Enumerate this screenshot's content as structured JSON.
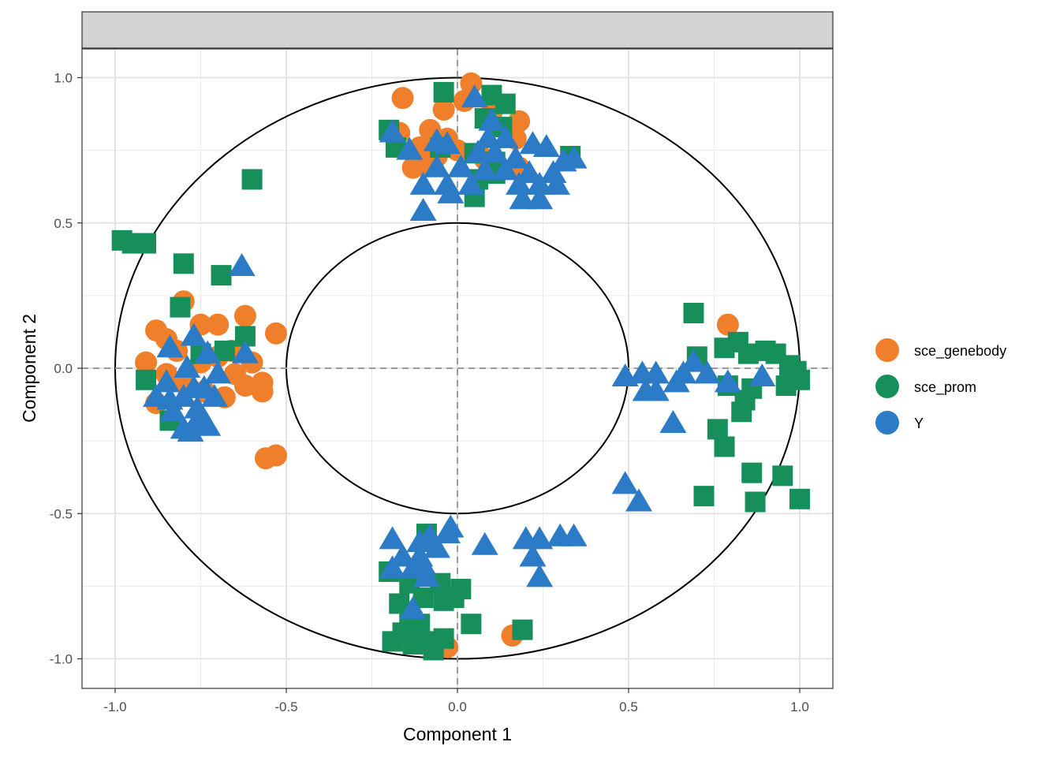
{
  "chart_data": {
    "type": "scatter",
    "title": "",
    "xlabel": "Component  1",
    "ylabel": "Component  2",
    "xlim": [
      -1.1,
      1.1
    ],
    "ylim": [
      -1.1,
      1.1
    ],
    "x_ticks": [
      "-1.0",
      "-0.5",
      "0.0",
      "0.5",
      "1.0"
    ],
    "y_ticks": [
      "-1.0",
      "-0.5",
      "0.0",
      "0.5",
      "1.0"
    ],
    "grid": true,
    "reference_circles": [
      1.0,
      0.5
    ],
    "reference_lines": {
      "x": 0,
      "y": 0,
      "style": "dashed"
    },
    "legend": {
      "placement": "right",
      "entries": [
        "sce_genebody",
        "sce_prom",
        "Y"
      ]
    },
    "series": [
      {
        "name": "sce_genebody",
        "color": "#F07F2B",
        "marker": "circle",
        "points": [
          [
            -0.88,
            0.13
          ],
          [
            -0.85,
            0.1
          ],
          [
            -0.8,
            0.23
          ],
          [
            -0.75,
            0.15
          ],
          [
            -0.7,
            0.15
          ],
          [
            -0.62,
            0.18
          ],
          [
            -0.53,
            0.12
          ],
          [
            -0.91,
            0.02
          ],
          [
            -0.85,
            -0.02
          ],
          [
            -0.82,
            0.06
          ],
          [
            -0.75,
            0.02
          ],
          [
            -0.7,
            0.04
          ],
          [
            -0.66,
            0.06
          ],
          [
            -0.6,
            0.02
          ],
          [
            -0.57,
            -0.05
          ],
          [
            -0.62,
            -0.06
          ],
          [
            -0.68,
            -0.1
          ],
          [
            -0.74,
            -0.08
          ],
          [
            -0.8,
            -0.05
          ],
          [
            -0.88,
            -0.12
          ],
          [
            -0.57,
            -0.08
          ],
          [
            -0.56,
            -0.31
          ],
          [
            -0.53,
            -0.3
          ],
          [
            -0.65,
            -0.02
          ],
          [
            0.04,
            0.98
          ],
          [
            -0.16,
            0.93
          ],
          [
            -0.04,
            0.89
          ],
          [
            0.02,
            0.92
          ],
          [
            0.1,
            0.88
          ],
          [
            0.18,
            0.85
          ],
          [
            -0.08,
            0.82
          ],
          [
            -0.17,
            0.81
          ],
          [
            -0.03,
            0.79
          ],
          [
            0.17,
            0.79
          ],
          [
            -0.11,
            0.76
          ],
          [
            -0.1,
            0.7
          ],
          [
            -0.06,
            0.73
          ],
          [
            0.0,
            0.75
          ],
          [
            0.08,
            0.72
          ],
          [
            -0.13,
            0.69
          ],
          [
            0.18,
            0.69
          ],
          [
            0.79,
            0.15
          ],
          [
            -0.03,
            -0.96
          ],
          [
            0.16,
            -0.92
          ]
        ]
      },
      {
        "name": "sce_prom",
        "color": "#178F5B",
        "marker": "square",
        "points": [
          [
            -0.98,
            0.44
          ],
          [
            -0.95,
            0.43
          ],
          [
            -0.91,
            0.43
          ],
          [
            -0.6,
            0.65
          ],
          [
            -0.8,
            0.36
          ],
          [
            -0.69,
            0.32
          ],
          [
            -0.81,
            0.21
          ],
          [
            -0.62,
            0.11
          ],
          [
            -0.68,
            0.06
          ],
          [
            -0.75,
            0.05
          ],
          [
            -0.91,
            -0.04
          ],
          [
            -0.84,
            -0.18
          ],
          [
            -0.04,
            0.95
          ],
          [
            0.1,
            0.94
          ],
          [
            0.14,
            0.91
          ],
          [
            0.08,
            0.86
          ],
          [
            0.13,
            0.83
          ],
          [
            -0.2,
            0.82
          ],
          [
            -0.18,
            0.76
          ],
          [
            -0.05,
            0.76
          ],
          [
            0.05,
            0.74
          ],
          [
            0.11,
            0.71
          ],
          [
            0.06,
            0.65
          ],
          [
            0.33,
            0.73
          ],
          [
            0.11,
            0.67
          ],
          [
            0.05,
            0.59
          ],
          [
            0.69,
            0.19
          ],
          [
            0.7,
            0.04
          ],
          [
            0.78,
            0.07
          ],
          [
            0.82,
            0.09
          ],
          [
            0.85,
            0.05
          ],
          [
            0.9,
            0.06
          ],
          [
            0.93,
            0.05
          ],
          [
            0.97,
            0.01
          ],
          [
            0.99,
            -0.01
          ],
          [
            1.0,
            -0.04
          ],
          [
            0.96,
            -0.06
          ],
          [
            0.86,
            -0.07
          ],
          [
            0.79,
            -0.06
          ],
          [
            0.84,
            -0.11
          ],
          [
            0.83,
            -0.15
          ],
          [
            0.76,
            -0.21
          ],
          [
            0.78,
            -0.27
          ],
          [
            0.86,
            -0.36
          ],
          [
            0.95,
            -0.37
          ],
          [
            0.72,
            -0.44
          ],
          [
            0.87,
            -0.46
          ],
          [
            1.0,
            -0.45
          ],
          [
            -0.09,
            -0.57
          ],
          [
            -0.2,
            -0.7
          ],
          [
            -0.14,
            -0.74
          ],
          [
            -0.05,
            -0.74
          ],
          [
            -0.1,
            -0.79
          ],
          [
            -0.17,
            -0.81
          ],
          [
            -0.04,
            -0.8
          ],
          [
            -0.01,
            -0.79
          ],
          [
            0.01,
            -0.76
          ],
          [
            -0.14,
            -0.85
          ],
          [
            -0.11,
            -0.88
          ],
          [
            -0.16,
            -0.91
          ],
          [
            -0.19,
            -0.94
          ],
          [
            -0.13,
            -0.95
          ],
          [
            -0.08,
            -0.94
          ],
          [
            -0.04,
            -0.93
          ],
          [
            -0.07,
            -0.97
          ],
          [
            0.04,
            -0.88
          ],
          [
            0.19,
            -0.9
          ]
        ]
      },
      {
        "name": "Y",
        "color": "#2C7BC6",
        "marker": "triangle",
        "points": [
          [
            -0.63,
            0.35
          ],
          [
            -0.77,
            0.11
          ],
          [
            -0.84,
            0.07
          ],
          [
            -0.73,
            0.05
          ],
          [
            -0.62,
            0.05
          ],
          [
            -0.79,
            0.0
          ],
          [
            -0.85,
            -0.05
          ],
          [
            -0.7,
            -0.02
          ],
          [
            -0.77,
            -0.07
          ],
          [
            -0.88,
            -0.1
          ],
          [
            -0.84,
            -0.11
          ],
          [
            -0.8,
            -0.1
          ],
          [
            -0.71,
            -0.1
          ],
          [
            -0.76,
            -0.14
          ],
          [
            -0.83,
            -0.15
          ],
          [
            -0.76,
            -0.18
          ],
          [
            -0.8,
            -0.21
          ],
          [
            -0.78,
            -0.22
          ],
          [
            -0.73,
            -0.2
          ],
          [
            -0.74,
            -0.07
          ],
          [
            0.05,
            0.93
          ],
          [
            0.1,
            0.85
          ],
          [
            -0.19,
            0.81
          ],
          [
            0.09,
            0.79
          ],
          [
            0.14,
            0.79
          ],
          [
            -0.06,
            0.78
          ],
          [
            -0.14,
            0.75
          ],
          [
            -0.03,
            0.77
          ],
          [
            0.22,
            0.77
          ],
          [
            0.26,
            0.76
          ],
          [
            0.06,
            0.74
          ],
          [
            0.11,
            0.74
          ],
          [
            0.17,
            0.72
          ],
          [
            0.31,
            0.71
          ],
          [
            0.34,
            0.72
          ],
          [
            -0.06,
            0.69
          ],
          [
            0.01,
            0.69
          ],
          [
            0.08,
            0.68
          ],
          [
            0.14,
            0.68
          ],
          [
            0.21,
            0.67
          ],
          [
            0.28,
            0.67
          ],
          [
            -0.1,
            0.63
          ],
          [
            -0.03,
            0.63
          ],
          [
            0.04,
            0.63
          ],
          [
            0.18,
            0.63
          ],
          [
            0.24,
            0.63
          ],
          [
            0.29,
            0.63
          ],
          [
            -0.02,
            0.6
          ],
          [
            0.19,
            0.58
          ],
          [
            0.24,
            0.58
          ],
          [
            -0.1,
            0.54
          ],
          [
            0.49,
            -0.03
          ],
          [
            0.54,
            -0.02
          ],
          [
            0.58,
            -0.02
          ],
          [
            0.66,
            -0.02
          ],
          [
            0.69,
            0.02
          ],
          [
            0.73,
            -0.02
          ],
          [
            0.79,
            -0.05
          ],
          [
            0.89,
            -0.03
          ],
          [
            0.64,
            -0.05
          ],
          [
            0.58,
            -0.08
          ],
          [
            0.55,
            -0.08
          ],
          [
            0.63,
            -0.19
          ],
          [
            0.49,
            -0.4
          ],
          [
            0.53,
            -0.46
          ],
          [
            -0.19,
            -0.59
          ],
          [
            -0.11,
            -0.6
          ],
          [
            -0.08,
            -0.58
          ],
          [
            -0.03,
            -0.57
          ],
          [
            -0.02,
            -0.55
          ],
          [
            0.08,
            -0.61
          ],
          [
            -0.16,
            -0.65
          ],
          [
            -0.11,
            -0.65
          ],
          [
            -0.06,
            -0.62
          ],
          [
            -0.19,
            -0.69
          ],
          [
            -0.13,
            -0.69
          ],
          [
            -0.1,
            -0.68
          ],
          [
            -0.09,
            -0.72
          ],
          [
            0.2,
            -0.59
          ],
          [
            0.24,
            -0.59
          ],
          [
            0.3,
            -0.58
          ],
          [
            0.34,
            -0.58
          ],
          [
            0.22,
            -0.65
          ],
          [
            0.24,
            -0.72
          ],
          [
            -0.13,
            -0.83
          ]
        ]
      }
    ]
  }
}
